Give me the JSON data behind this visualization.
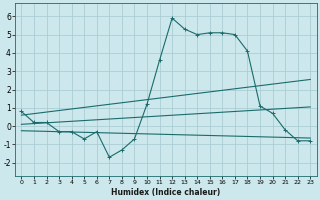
{
  "xlabel": "Humidex (Indice chaleur)",
  "bg_color": "#cce8ec",
  "grid_color": "#aacdd4",
  "line_color": "#1a6b6b",
  "xlim": [
    -0.5,
    23.5
  ],
  "ylim": [
    -2.7,
    6.7
  ],
  "xticks": [
    0,
    1,
    2,
    3,
    4,
    5,
    6,
    7,
    8,
    9,
    10,
    11,
    12,
    13,
    14,
    15,
    16,
    17,
    18,
    19,
    20,
    21,
    22,
    23
  ],
  "yticks": [
    -2,
    -1,
    0,
    1,
    2,
    3,
    4,
    5,
    6
  ],
  "curve1_x": [
    0,
    1,
    2,
    3,
    4,
    5,
    6,
    7,
    8,
    9,
    10,
    11,
    12,
    13,
    14,
    15,
    16,
    17,
    18,
    19,
    20,
    21,
    22,
    23
  ],
  "curve1_y": [
    0.8,
    0.2,
    0.2,
    -0.3,
    -0.3,
    -0.7,
    -0.3,
    -1.7,
    -1.3,
    -0.7,
    1.2,
    3.6,
    5.9,
    5.3,
    5.0,
    5.1,
    5.1,
    5.0,
    4.1,
    1.1,
    0.7,
    -0.2,
    -0.8,
    -0.8
  ],
  "curve2_x": [
    0,
    23
  ],
  "curve2_y": [
    0.6,
    2.55
  ],
  "curve3_x": [
    0,
    23
  ],
  "curve3_y": [
    0.1,
    1.05
  ],
  "curve4_x": [
    0,
    23
  ],
  "curve4_y": [
    -0.25,
    -0.65
  ]
}
